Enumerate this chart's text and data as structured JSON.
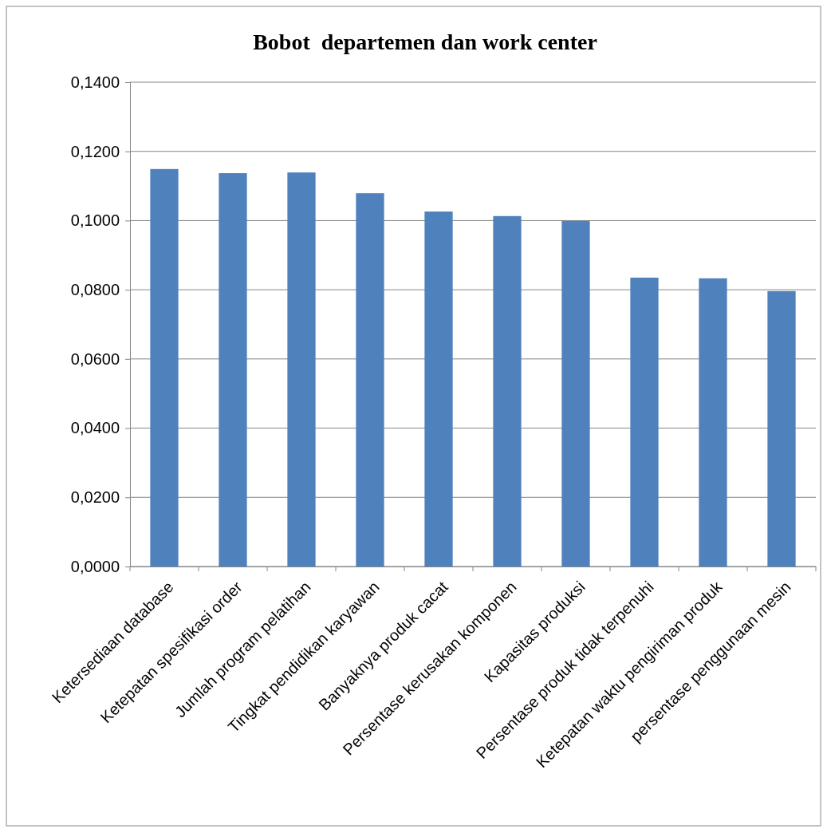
{
  "chart_data": {
    "type": "bar",
    "title": "Bobot  departemen dan work center",
    "categories": [
      "Ketersediaan database",
      "Ketepatan spesifikasi order",
      "Jumlah program pelatihan",
      "Tingkat pendidikan karyawan",
      "Banyaknya produk cacat",
      "Persentase kerusakan komponen",
      "Kapasitas produksi",
      "Persentase produk tidak terpenuhi",
      "Ketepatan waktu pengiriman produk",
      "persentase penggunaan mesin"
    ],
    "values": [
      0.1149,
      0.1137,
      0.1139,
      0.1079,
      0.1026,
      0.1013,
      0.0999,
      0.0835,
      0.0833,
      0.0796
    ],
    "color": "#4f81bd",
    "ylim": [
      0,
      0.14
    ],
    "yticks": [
      {
        "value": 0,
        "label": "0,0000"
      },
      {
        "value": 0.02,
        "label": "0,0200"
      },
      {
        "value": 0.04,
        "label": "0,0400"
      },
      {
        "value": 0.06,
        "label": "0,0600"
      },
      {
        "value": 0.08,
        "label": "0,0800"
      },
      {
        "value": 0.1,
        "label": "0,1000"
      },
      {
        "value": 0.12,
        "label": "0,1200"
      },
      {
        "value": 0.14,
        "label": "0,1400"
      }
    ],
    "grid": "y"
  }
}
